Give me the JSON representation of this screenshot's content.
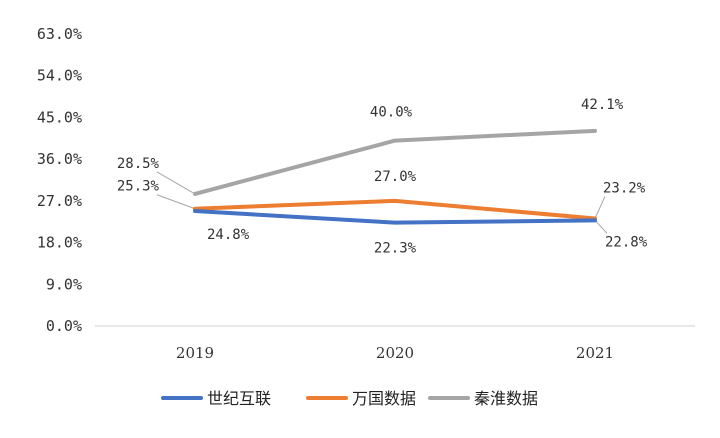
{
  "chart_data": {
    "type": "line",
    "categories": [
      "2019",
      "2020",
      "2021"
    ],
    "ylim": [
      0,
      63
    ],
    "yticks": [
      0,
      9,
      18,
      27,
      36,
      45,
      54,
      63
    ],
    "ytick_labels": [
      "0.0%",
      "9.0%",
      "18.0%",
      "27.0%",
      "36.0%",
      "45.0%",
      "54.0%",
      "63.0%"
    ],
    "grid": false,
    "legend_position": "bottom",
    "series": [
      {
        "name": "世纪互联",
        "color": "#4472C4",
        "values": [
          24.8,
          22.3,
          22.8
        ],
        "labels": [
          "24.8%",
          "22.3%",
          "22.8%"
        ]
      },
      {
        "name": "万国数据",
        "color": "#ED7D31",
        "values": [
          25.3,
          27.0,
          23.2
        ],
        "labels": [
          "25.3%",
          "27.0%",
          "23.2%"
        ]
      },
      {
        "name": "秦淮数据",
        "color": "#A5A5A5",
        "values": [
          28.5,
          40.0,
          42.1
        ],
        "labels": [
          "28.5%",
          "40.0%",
          "42.1%"
        ]
      }
    ]
  }
}
